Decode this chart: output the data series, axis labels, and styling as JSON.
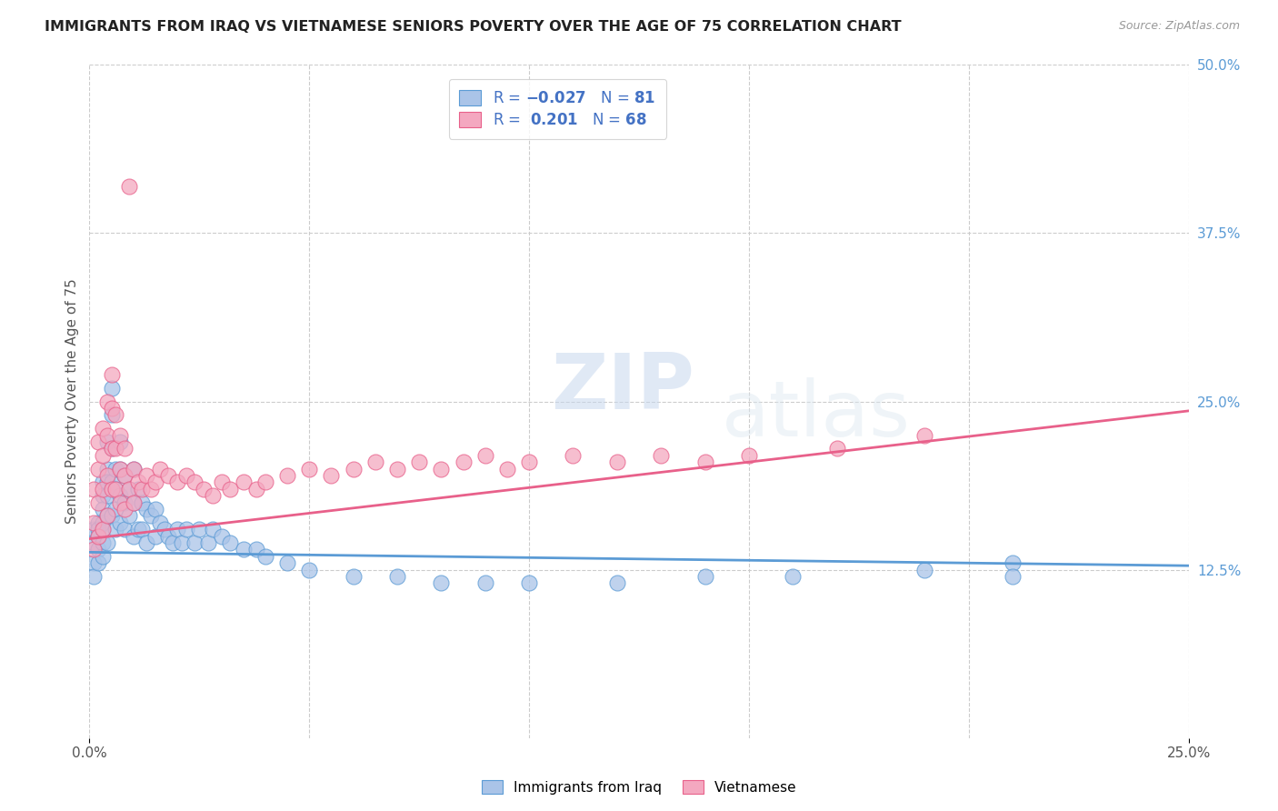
{
  "title": "IMMIGRANTS FROM IRAQ VS VIETNAMESE SENIORS POVERTY OVER THE AGE OF 75 CORRELATION CHART",
  "source": "Source: ZipAtlas.com",
  "ylabel": "Seniors Poverty Over the Age of 75",
  "xlim": [
    0.0,
    0.25
  ],
  "ylim": [
    0.0,
    0.5
  ],
  "xtick_positions": [
    0.0,
    0.25
  ],
  "xtick_labels": [
    "0.0%",
    "25.0%"
  ],
  "ytick_positions_right": [
    0.5,
    0.375,
    0.25,
    0.125
  ],
  "ytick_labels_right": [
    "50.0%",
    "37.5%",
    "25.0%",
    "12.5%"
  ],
  "grid_color": "#cccccc",
  "background_color": "#ffffff",
  "iraq_color": "#aac4e8",
  "iraq_line_color": "#5b9bd5",
  "viet_color": "#f4a8c0",
  "viet_line_color": "#e8608a",
  "iraq_R": -0.027,
  "iraq_N": 81,
  "viet_R": 0.201,
  "viet_N": 68,
  "legend_label_iraq": "Immigrants from Iraq",
  "legend_label_viet": "Vietnamese",
  "watermark_zip": "ZIP",
  "watermark_atlas": "atlas",
  "iraq_scatter_x": [
    0.001,
    0.001,
    0.001,
    0.001,
    0.002,
    0.002,
    0.002,
    0.002,
    0.002,
    0.003,
    0.003,
    0.003,
    0.003,
    0.003,
    0.003,
    0.003,
    0.004,
    0.004,
    0.004,
    0.004,
    0.004,
    0.004,
    0.005,
    0.005,
    0.005,
    0.005,
    0.005,
    0.006,
    0.006,
    0.006,
    0.006,
    0.007,
    0.007,
    0.007,
    0.007,
    0.008,
    0.008,
    0.008,
    0.009,
    0.009,
    0.01,
    0.01,
    0.01,
    0.011,
    0.011,
    0.012,
    0.012,
    0.013,
    0.013,
    0.014,
    0.015,
    0.015,
    0.016,
    0.017,
    0.018,
    0.019,
    0.02,
    0.021,
    0.022,
    0.024,
    0.025,
    0.027,
    0.028,
    0.03,
    0.032,
    0.035,
    0.038,
    0.04,
    0.045,
    0.05,
    0.06,
    0.07,
    0.08,
    0.09,
    0.1,
    0.12,
    0.14,
    0.16,
    0.19,
    0.21,
    0.21
  ],
  "iraq_scatter_y": [
    0.155,
    0.145,
    0.13,
    0.12,
    0.16,
    0.155,
    0.15,
    0.14,
    0.13,
    0.19,
    0.18,
    0.17,
    0.16,
    0.155,
    0.145,
    0.135,
    0.22,
    0.2,
    0.19,
    0.18,
    0.165,
    0.145,
    0.26,
    0.24,
    0.215,
    0.19,
    0.165,
    0.2,
    0.185,
    0.17,
    0.155,
    0.22,
    0.2,
    0.18,
    0.16,
    0.195,
    0.175,
    0.155,
    0.185,
    0.165,
    0.2,
    0.175,
    0.15,
    0.185,
    0.155,
    0.175,
    0.155,
    0.17,
    0.145,
    0.165,
    0.17,
    0.15,
    0.16,
    0.155,
    0.15,
    0.145,
    0.155,
    0.145,
    0.155,
    0.145,
    0.155,
    0.145,
    0.155,
    0.15,
    0.145,
    0.14,
    0.14,
    0.135,
    0.13,
    0.125,
    0.12,
    0.12,
    0.115,
    0.115,
    0.115,
    0.115,
    0.12,
    0.12,
    0.125,
    0.13,
    0.12
  ],
  "viet_scatter_x": [
    0.001,
    0.001,
    0.001,
    0.002,
    0.002,
    0.002,
    0.002,
    0.003,
    0.003,
    0.003,
    0.003,
    0.004,
    0.004,
    0.004,
    0.004,
    0.005,
    0.005,
    0.005,
    0.005,
    0.006,
    0.006,
    0.006,
    0.007,
    0.007,
    0.007,
    0.008,
    0.008,
    0.008,
    0.009,
    0.009,
    0.01,
    0.01,
    0.011,
    0.012,
    0.013,
    0.014,
    0.015,
    0.016,
    0.018,
    0.02,
    0.022,
    0.024,
    0.026,
    0.028,
    0.03,
    0.032,
    0.035,
    0.038,
    0.04,
    0.045,
    0.05,
    0.055,
    0.06,
    0.065,
    0.07,
    0.075,
    0.08,
    0.085,
    0.09,
    0.095,
    0.1,
    0.11,
    0.12,
    0.13,
    0.14,
    0.15,
    0.17,
    0.19
  ],
  "viet_scatter_y": [
    0.185,
    0.16,
    0.14,
    0.22,
    0.2,
    0.175,
    0.15,
    0.23,
    0.21,
    0.185,
    0.155,
    0.25,
    0.225,
    0.195,
    0.165,
    0.27,
    0.245,
    0.215,
    0.185,
    0.24,
    0.215,
    0.185,
    0.225,
    0.2,
    0.175,
    0.215,
    0.195,
    0.17,
    0.41,
    0.185,
    0.2,
    0.175,
    0.19,
    0.185,
    0.195,
    0.185,
    0.19,
    0.2,
    0.195,
    0.19,
    0.195,
    0.19,
    0.185,
    0.18,
    0.19,
    0.185,
    0.19,
    0.185,
    0.19,
    0.195,
    0.2,
    0.195,
    0.2,
    0.205,
    0.2,
    0.205,
    0.2,
    0.205,
    0.21,
    0.2,
    0.205,
    0.21,
    0.205,
    0.21,
    0.205,
    0.21,
    0.215,
    0.225
  ]
}
